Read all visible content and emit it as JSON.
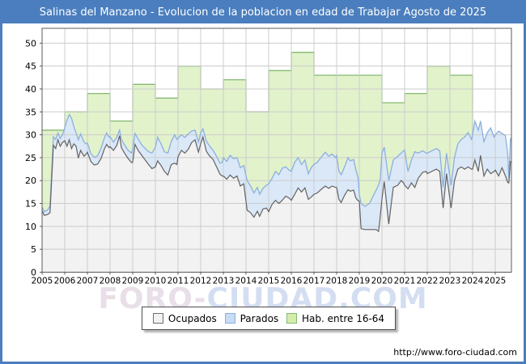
{
  "window": {
    "title": "Salinas del Manzano - Evolucion de la poblacion en edad de Trabajar Agosto de 2025"
  },
  "watermark": {
    "part1": "FORO-",
    "part2": "CIUDAD.COM"
  },
  "footer": {
    "url": "http://www.foro-ciudad.com"
  },
  "legend": {
    "items": [
      {
        "label": "Ocupados",
        "fill": "#f2f2f2",
        "border": "#6e6e6e"
      },
      {
        "label": "Parados",
        "fill": "#c7dcf4",
        "border": "#8cb0de"
      },
      {
        "label": "Hab. entre 16-64",
        "fill": "#d5edab",
        "border": "#85b971"
      }
    ]
  },
  "colors": {
    "frame_blue": "#4a7ebe",
    "grid": "#cccccc",
    "plot_border": "#595959",
    "green_fill": "#e2f2cb",
    "green_line": "#85b971",
    "blue_fill": "#dae8f8",
    "blue_line": "#8cb0de",
    "gray_fill": "#f2f2f2",
    "gray_line": "#636363",
    "tick_text": "#000000"
  },
  "chart_data": {
    "type": "area",
    "title": "Salinas del Manzano - Evolucion de la poblacion en edad de Trabajar Agosto de 2025",
    "xlabel": "",
    "ylabel": "",
    "x_ticks": [
      2005,
      2006,
      2007,
      2008,
      2009,
      2010,
      2011,
      2012,
      2013,
      2014,
      2015,
      2016,
      2017,
      2018,
      2019,
      2020,
      2021,
      2022,
      2023,
      2024,
      2025
    ],
    "y_ticks": [
      0,
      5,
      10,
      15,
      20,
      25,
      30,
      35,
      40,
      45,
      50
    ],
    "x_range": [
      2005,
      2025.67
    ],
    "y_range": [
      0,
      53.2
    ],
    "grid": true,
    "legend_position": "bottom",
    "hab_16_64": {
      "name": "Hab. entre 16-64",
      "style": "step-area-annual",
      "years": [
        2005,
        2006,
        2007,
        2008,
        2009,
        2010,
        2011,
        2012,
        2013,
        2014,
        2015,
        2016,
        2017,
        2018,
        2019,
        2020,
        2021,
        2022,
        2023
      ],
      "values": [
        31,
        35,
        39,
        33,
        41,
        38,
        45,
        40,
        42,
        35,
        44,
        48,
        43,
        43,
        43,
        37,
        39,
        45,
        43
      ],
      "ends_at": 2024.0
    },
    "monthly": {
      "columns": [
        "year_frac",
        "ocupados",
        "ocupados_plus_parados"
      ],
      "rows": [
        [
          2005.0,
          13.4,
          14.2
        ],
        [
          2005.1,
          12.4,
          13.2
        ],
        [
          2005.25,
          12.6,
          13.6
        ],
        [
          2005.35,
          13.0,
          14.5
        ],
        [
          2005.5,
          27.7,
          29.6
        ],
        [
          2005.6,
          27.0,
          29.0
        ],
        [
          2005.7,
          28.9,
          30.4
        ],
        [
          2005.8,
          27.5,
          29.2
        ],
        [
          2005.9,
          28.3,
          30.0
        ],
        [
          2006.0,
          28.7,
          31.5
        ],
        [
          2006.1,
          27.5,
          33.2
        ],
        [
          2006.2,
          28.9,
          34.4
        ],
        [
          2006.3,
          27.0,
          33.6
        ],
        [
          2006.4,
          28.0,
          31.8
        ],
        [
          2006.5,
          27.5,
          30.4
        ],
        [
          2006.6,
          24.9,
          28.9
        ],
        [
          2006.7,
          26.6,
          30.2
        ],
        [
          2006.85,
          25.3,
          28.4
        ],
        [
          2006.95,
          25.8,
          28.0
        ],
        [
          2007.0,
          26.2,
          28.2
        ],
        [
          2007.15,
          24.2,
          25.9
        ],
        [
          2007.3,
          23.4,
          25.1
        ],
        [
          2007.45,
          23.6,
          25.4
        ],
        [
          2007.6,
          24.8,
          27.0
        ],
        [
          2007.75,
          26.9,
          29.3
        ],
        [
          2007.85,
          27.9,
          30.4
        ],
        [
          2007.95,
          27.2,
          29.5
        ],
        [
          2008.0,
          27.4,
          29.6
        ],
        [
          2008.15,
          26.6,
          28.4
        ],
        [
          2008.3,
          27.7,
          29.5
        ],
        [
          2008.42,
          29.8,
          31.0
        ],
        [
          2008.5,
          27.2,
          29.0
        ],
        [
          2008.65,
          25.9,
          27.7
        ],
        [
          2008.8,
          24.8,
          26.6
        ],
        [
          2008.95,
          23.9,
          26.0
        ],
        [
          2009.0,
          24.0,
          27.0
        ],
        [
          2009.1,
          27.9,
          30.3
        ],
        [
          2009.25,
          26.5,
          29.0
        ],
        [
          2009.4,
          25.5,
          27.8
        ],
        [
          2009.55,
          24.5,
          27.0
        ],
        [
          2009.7,
          23.5,
          26.3
        ],
        [
          2009.85,
          22.6,
          26.0
        ],
        [
          2010.0,
          23.0,
          27.3
        ],
        [
          2010.1,
          24.3,
          29.5
        ],
        [
          2010.25,
          23.3,
          28.0
        ],
        [
          2010.4,
          22.0,
          26.3
        ],
        [
          2010.55,
          21.2,
          26.0
        ],
        [
          2010.7,
          23.5,
          28.5
        ],
        [
          2010.85,
          23.8,
          30.0
        ],
        [
          2010.95,
          23.5,
          29.0
        ],
        [
          2011.0,
          25.2,
          29.3
        ],
        [
          2011.15,
          26.6,
          30.0
        ],
        [
          2011.3,
          26.0,
          29.4
        ],
        [
          2011.45,
          26.8,
          30.2
        ],
        [
          2011.6,
          28.3,
          30.8
        ],
        [
          2011.75,
          28.9,
          31.0
        ],
        [
          2011.9,
          26.2,
          28.4
        ],
        [
          2012.0,
          28.0,
          30.4
        ],
        [
          2012.1,
          29.5,
          31.3
        ],
        [
          2012.25,
          26.4,
          28.6
        ],
        [
          2012.4,
          25.3,
          27.5
        ],
        [
          2012.55,
          24.6,
          26.6
        ],
        [
          2012.7,
          23.0,
          25.3
        ],
        [
          2012.85,
          21.4,
          23.8
        ],
        [
          2012.95,
          21.0,
          24.0
        ],
        [
          2013.0,
          21.0,
          25.0
        ],
        [
          2013.15,
          20.3,
          24.2
        ],
        [
          2013.3,
          21.2,
          25.5
        ],
        [
          2013.45,
          20.5,
          24.8
        ],
        [
          2013.6,
          21.0,
          25.0
        ],
        [
          2013.75,
          18.8,
          22.8
        ],
        [
          2013.9,
          19.3,
          23.3
        ],
        [
          2014.05,
          13.5,
          20.0
        ],
        [
          2014.2,
          13.0,
          18.8
        ],
        [
          2014.35,
          12.0,
          17.3
        ],
        [
          2014.5,
          13.3,
          18.5
        ],
        [
          2014.6,
          12.2,
          17.0
        ],
        [
          2014.75,
          13.8,
          18.3
        ],
        [
          2014.9,
          14.0,
          19.0
        ],
        [
          2015.0,
          13.2,
          19.3
        ],
        [
          2015.15,
          14.8,
          20.5
        ],
        [
          2015.3,
          15.7,
          22.0
        ],
        [
          2015.45,
          15.0,
          21.3
        ],
        [
          2015.6,
          15.7,
          22.7
        ],
        [
          2015.75,
          16.6,
          23.0
        ],
        [
          2015.9,
          16.2,
          22.3
        ],
        [
          2016.0,
          15.7,
          22.0
        ],
        [
          2016.15,
          17.0,
          24.0
        ],
        [
          2016.3,
          18.4,
          25.0
        ],
        [
          2016.45,
          17.5,
          23.5
        ],
        [
          2016.6,
          18.4,
          24.5
        ],
        [
          2016.75,
          15.9,
          21.5
        ],
        [
          2016.9,
          16.5,
          23.0
        ],
        [
          2017.0,
          17.0,
          23.5
        ],
        [
          2017.15,
          17.3,
          24.0
        ],
        [
          2017.3,
          18.0,
          25.0
        ],
        [
          2017.5,
          18.8,
          26.2
        ],
        [
          2017.65,
          18.3,
          25.3
        ],
        [
          2017.8,
          18.8,
          25.8
        ],
        [
          2017.95,
          18.5,
          25.0
        ],
        [
          2018.0,
          18.5,
          25.5
        ],
        [
          2018.1,
          15.9,
          22.0
        ],
        [
          2018.2,
          15.2,
          21.3
        ],
        [
          2018.35,
          16.8,
          23.0
        ],
        [
          2018.5,
          18.0,
          25.0
        ],
        [
          2018.6,
          17.7,
          24.3
        ],
        [
          2018.75,
          17.9,
          24.6
        ],
        [
          2018.85,
          16.2,
          22.3
        ],
        [
          2018.95,
          15.6,
          20.5
        ],
        [
          2019.0,
          15.5,
          17.0
        ],
        [
          2019.08,
          9.5,
          15.0
        ],
        [
          2019.25,
          9.3,
          14.4
        ],
        [
          2019.45,
          9.3,
          15.0
        ],
        [
          2019.6,
          9.3,
          16.5
        ],
        [
          2019.75,
          9.3,
          18.0
        ],
        [
          2019.85,
          8.9,
          19.0
        ],
        [
          2019.92,
          12.0,
          20.2
        ],
        [
          2020.0,
          16.0,
          26.0
        ],
        [
          2020.1,
          19.8,
          27.3
        ],
        [
          2020.3,
          10.5,
          20.0
        ],
        [
          2020.5,
          18.5,
          24.5
        ],
        [
          2020.7,
          19.0,
          25.3
        ],
        [
          2020.85,
          20.0,
          26.0
        ],
        [
          2020.95,
          19.5,
          26.5
        ],
        [
          2021.0,
          19.0,
          26.6
        ],
        [
          2021.15,
          18.2,
          22.0
        ],
        [
          2021.3,
          19.5,
          24.5
        ],
        [
          2021.45,
          18.5,
          26.3
        ],
        [
          2021.6,
          20.5,
          26.0
        ],
        [
          2021.8,
          21.8,
          26.5
        ],
        [
          2021.95,
          22.0,
          26.0
        ],
        [
          2022.0,
          21.5,
          26.0
        ],
        [
          2022.2,
          22.0,
          26.5
        ],
        [
          2022.4,
          22.5,
          27.0
        ],
        [
          2022.55,
          22.0,
          26.5
        ],
        [
          2022.7,
          14.0,
          18.5
        ],
        [
          2022.85,
          21.5,
          26.0
        ],
        [
          2023.05,
          14.0,
          19.0
        ],
        [
          2023.2,
          20.0,
          25.0
        ],
        [
          2023.35,
          22.5,
          28.0
        ],
        [
          2023.5,
          23.0,
          29.0
        ],
        [
          2023.65,
          22.5,
          29.5
        ],
        [
          2023.8,
          23.0,
          30.5
        ],
        [
          2023.95,
          22.5,
          29.0
        ],
        [
          2024.0,
          22.5,
          30.0
        ],
        [
          2024.1,
          24.5,
          33.0
        ],
        [
          2024.25,
          22.0,
          31.0
        ],
        [
          2024.35,
          25.5,
          33.0
        ],
        [
          2024.5,
          21.0,
          28.5
        ],
        [
          2024.65,
          22.5,
          30.5
        ],
        [
          2024.8,
          21.5,
          31.5
        ],
        [
          2024.95,
          22.0,
          29.5
        ],
        [
          2025.0,
          22.3,
          30.0
        ],
        [
          2025.15,
          21.0,
          30.8
        ],
        [
          2025.3,
          22.8,
          30.3
        ],
        [
          2025.45,
          21.0,
          29.8
        ],
        [
          2025.55,
          19.6,
          26.0
        ],
        [
          2025.6,
          19.5,
          20.5
        ],
        [
          2025.67,
          24.3,
          29.3
        ]
      ]
    }
  }
}
